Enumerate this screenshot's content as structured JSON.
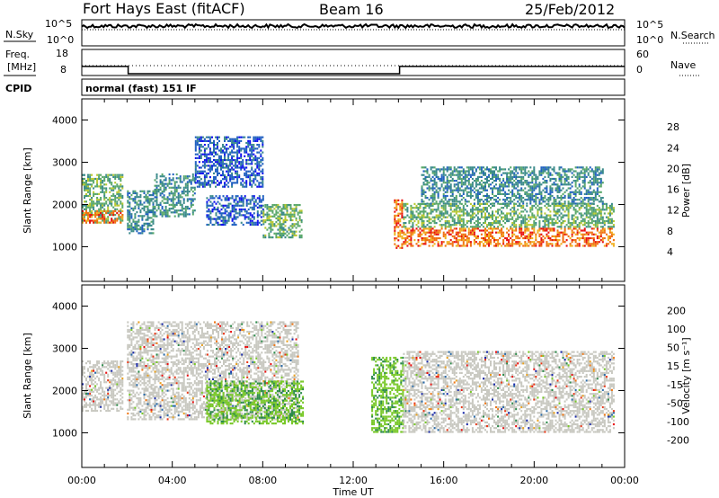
{
  "header": {
    "station": "Fort Hays East (fitACF)",
    "beam": "Beam 16",
    "date": "25/Feb/2012"
  },
  "noise_panel": {
    "left_label": "N.Sky",
    "left_ticks": [
      "10^5",
      "10^0"
    ],
    "right_ticks": [
      "10^5",
      "10^0"
    ],
    "right_label": "N.Search"
  },
  "freq_panel": {
    "left_label_line1": "Freq.",
    "left_label_line2": "[MHz]",
    "left_ticks": [
      "18",
      "8"
    ],
    "right_ticks": [
      "60",
      "0"
    ],
    "right_label": "Nave",
    "freq_series": [
      {
        "x": 0.0,
        "y": 13.2
      },
      {
        "x": 2.05,
        "y": 13.2
      },
      {
        "x": 2.05,
        "y": 10.4
      },
      {
        "x": 14.05,
        "y": 10.4
      },
      {
        "x": 14.05,
        "y": 13.2
      },
      {
        "x": 24.0,
        "y": 13.2
      }
    ],
    "nave_level": 12
  },
  "cpid": {
    "label": "CPID",
    "text": "normal (fast) 151 IF"
  },
  "x_axis": {
    "label": "Time UT",
    "ticks": [
      "00:00",
      "04:00",
      "08:00",
      "12:00",
      "16:00",
      "20:00",
      "00:00"
    ],
    "range_hours": [
      0,
      24
    ]
  },
  "power_panel": {
    "ylabel": "Slant Range [km]",
    "yticks": [
      "1000",
      "2000",
      "3000",
      "4000"
    ],
    "ytick_values": [
      1000,
      2000,
      3000,
      4000
    ],
    "yrange": [
      180,
      4500
    ],
    "colorbar_label": "Power [dB]",
    "colorbar_ticks": [
      "4",
      "8",
      "12",
      "16",
      "20",
      "24",
      "28"
    ],
    "colorbar_colors": [
      "#1010ee",
      "#2060c0",
      "#3a8a8a",
      "#5aa86a",
      "#b8c830",
      "#f0b020",
      "#f07010",
      "#e81010"
    ]
  },
  "velocity_panel": {
    "ylabel": "Slant Range [km]",
    "yticks": [
      "1000",
      "2000",
      "3000",
      "4000"
    ],
    "ytick_values": [
      1000,
      2000,
      3000,
      4000
    ],
    "yrange": [
      180,
      4500
    ],
    "colorbar_label": "Velocity [m s⁻¹]",
    "colorbar_ticks": [
      "200",
      "100",
      "50",
      "15",
      "-15",
      "-50",
      "-100",
      "-200"
    ],
    "colorbar_colors": [
      "#1a2aa8",
      "#2a6aa8",
      "#2c8a4a",
      "#78c828",
      "#c8c8c0",
      "#e8a020",
      "#f07818",
      "#e83818",
      "#e81010"
    ]
  },
  "chart_data": {
    "type": "heatmap",
    "x_unit": "hours UT",
    "y_unit": "km",
    "power_regions": [
      {
        "x": [
          0.0,
          1.8
        ],
        "y": [
          1550,
          2700
        ],
        "dB": 14
      },
      {
        "x": [
          0.0,
          1.8
        ],
        "y": [
          1550,
          1850
        ],
        "dB": 26
      },
      {
        "x": [
          2.0,
          3.2
        ],
        "y": [
          1300,
          2300
        ],
        "dB": 10
      },
      {
        "x": [
          3.2,
          5.0
        ],
        "y": [
          1700,
          2700
        ],
        "dB": 12
      },
      {
        "x": [
          5.0,
          8.0
        ],
        "y": [
          2400,
          3600
        ],
        "dB": 8
      },
      {
        "x": [
          5.5,
          8.0
        ],
        "y": [
          1500,
          2200
        ],
        "dB": 8
      },
      {
        "x": [
          8.0,
          9.7
        ],
        "y": [
          1200,
          2000
        ],
        "dB": 16
      },
      {
        "x": [
          13.8,
          14.2
        ],
        "y": [
          950,
          2100
        ],
        "dB": 28
      },
      {
        "x": [
          14.2,
          23.5
        ],
        "y": [
          1000,
          1450
        ],
        "dB": 28
      },
      {
        "x": [
          14.2,
          23.5
        ],
        "y": [
          1450,
          2000
        ],
        "dB": 14
      },
      {
        "x": [
          15.0,
          23.0
        ],
        "y": [
          2000,
          2900
        ],
        "dB": 10
      }
    ],
    "velocity_regions": [
      {
        "x": [
          0.0,
          1.8
        ],
        "y": [
          1500,
          2700
        ],
        "v": 0
      },
      {
        "x": [
          2.0,
          9.6
        ],
        "y": [
          1300,
          3600
        ],
        "v": 0
      },
      {
        "x": [
          5.5,
          9.8
        ],
        "y": [
          1200,
          2200
        ],
        "v": 60
      },
      {
        "x": [
          12.8,
          14.2
        ],
        "y": [
          1000,
          2800
        ],
        "v": 40
      },
      {
        "x": [
          14.2,
          23.5
        ],
        "y": [
          1000,
          2900
        ],
        "v": 0
      }
    ]
  }
}
